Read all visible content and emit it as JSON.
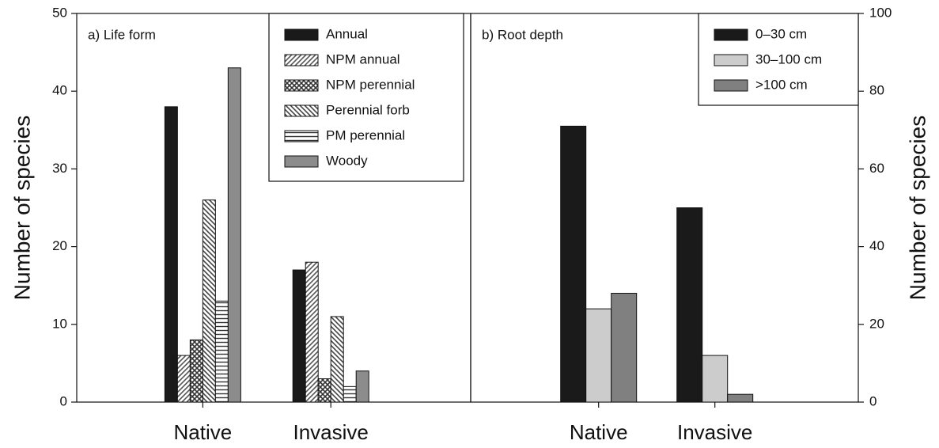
{
  "chart_data": [
    {
      "type": "bar",
      "title": "a) Life form",
      "y_label": "Number of species",
      "categories": [
        "Native",
        "Invasive"
      ],
      "series": [
        {
          "name": "Annual",
          "color": "#1a1a1a",
          "pattern": "solid",
          "values": [
            38,
            17
          ]
        },
        {
          "name": "NPM annual",
          "color": "#555555",
          "pattern": "diagonal-up",
          "values": [
            6,
            18
          ]
        },
        {
          "name": "NPM perennial",
          "color": "#333333",
          "pattern": "crosshatch",
          "values": [
            8,
            3
          ]
        },
        {
          "name": "Perennial forb",
          "color": "#444444",
          "pattern": "diagonal-down",
          "values": [
            26,
            11
          ]
        },
        {
          "name": "PM perennial",
          "color": "#333333",
          "pattern": "horizontal",
          "values": [
            13,
            2
          ]
        },
        {
          "name": "Woody",
          "color": "#8c8c8c",
          "pattern": "solid",
          "values": [
            43,
            4
          ]
        }
      ],
      "ylim": [
        0,
        50
      ],
      "yticks": [
        0,
        10,
        20,
        30,
        40,
        50
      ],
      "y_axis_side": "left",
      "legend_position": "upper right"
    },
    {
      "type": "bar",
      "title": "b) Root depth",
      "y_label": "Number of species",
      "categories": [
        "Native",
        "Invasive"
      ],
      "series": [
        {
          "name": "0–30 cm",
          "color": "#1a1a1a",
          "pattern": "solid",
          "values": [
            71,
            50
          ]
        },
        {
          "name": "30–100 cm",
          "color": "#cccccc",
          "pattern": "solid",
          "values": [
            24,
            12
          ]
        },
        {
          "name": ">100 cm",
          "color": "#808080",
          "pattern": "solid",
          "values": [
            28,
            2
          ]
        }
      ],
      "ylim": [
        0,
        100
      ],
      "yticks": [
        0,
        20,
        40,
        60,
        80,
        100
      ],
      "y_axis_side": "right",
      "legend_position": "upper right"
    }
  ]
}
